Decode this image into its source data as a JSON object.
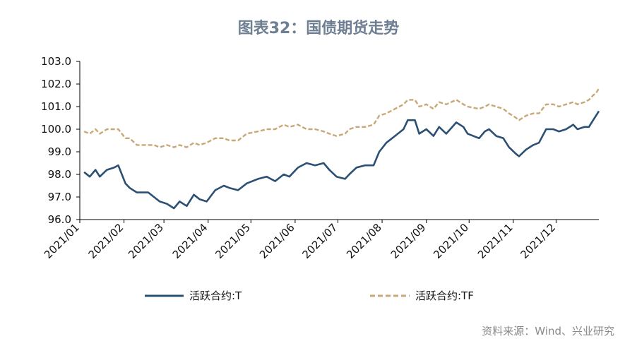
{
  "title": "图表32：国债期货走势",
  "source": "资料来源：Wind、兴业研究",
  "colors": {
    "T": "#2b5073",
    "TF": "#c8a878"
  },
  "chart_data": {
    "type": "line",
    "xlabel": "",
    "ylabel": "",
    "ylim": [
      96.0,
      103.0
    ],
    "y_ticks": [
      "96.0",
      "97.0",
      "98.0",
      "99.0",
      "100.0",
      "101.0",
      "102.0",
      "103.0"
    ],
    "x_ticks": [
      "2021/01",
      "2021/02",
      "2021/03",
      "2021/04",
      "2021/05",
      "2021/06",
      "2021/07",
      "2021/08",
      "2021/09",
      "2021/10",
      "2021/11",
      "2021/12"
    ],
    "legend_position": "bottom",
    "series": [
      {
        "name": "活跃合约:T",
        "style": "solid",
        "points": [
          [
            "2021/01/04",
            98.1
          ],
          [
            "2021/01/08",
            97.9
          ],
          [
            "2021/01/12",
            98.2
          ],
          [
            "2021/01/15",
            97.9
          ],
          [
            "2021/01/20",
            98.2
          ],
          [
            "2021/01/25",
            98.3
          ],
          [
            "2021/01/28",
            98.4
          ],
          [
            "2021/02/02",
            97.6
          ],
          [
            "2021/02/05",
            97.4
          ],
          [
            "2021/02/10",
            97.2
          ],
          [
            "2021/02/18",
            97.2
          ],
          [
            "2021/02/22",
            97.0
          ],
          [
            "2021/02/26",
            96.8
          ],
          [
            "2021/03/03",
            96.7
          ],
          [
            "2021/03/08",
            96.5
          ],
          [
            "2021/03/12",
            96.8
          ],
          [
            "2021/03/17",
            96.6
          ],
          [
            "2021/03/22",
            97.1
          ],
          [
            "2021/03/26",
            96.9
          ],
          [
            "2021/03/31",
            96.8
          ],
          [
            "2021/04/06",
            97.3
          ],
          [
            "2021/04/12",
            97.5
          ],
          [
            "2021/04/16",
            97.4
          ],
          [
            "2021/04/22",
            97.3
          ],
          [
            "2021/04/28",
            97.6
          ],
          [
            "2021/05/06",
            97.8
          ],
          [
            "2021/05/12",
            97.9
          ],
          [
            "2021/05/18",
            97.7
          ],
          [
            "2021/05/24",
            98.0
          ],
          [
            "2021/05/28",
            97.9
          ],
          [
            "2021/06/03",
            98.3
          ],
          [
            "2021/06/09",
            98.5
          ],
          [
            "2021/06/15",
            98.4
          ],
          [
            "2021/06/21",
            98.5
          ],
          [
            "2021/06/25",
            98.2
          ],
          [
            "2021/06/30",
            97.9
          ],
          [
            "2021/07/06",
            97.8
          ],
          [
            "2021/07/09",
            98.0
          ],
          [
            "2021/07/14",
            98.3
          ],
          [
            "2021/07/20",
            98.4
          ],
          [
            "2021/07/26",
            98.4
          ],
          [
            "2021/07/30",
            99.0
          ],
          [
            "2021/08/04",
            99.4
          ],
          [
            "2021/08/10",
            99.7
          ],
          [
            "2021/08/16",
            100.0
          ],
          [
            "2021/08/19",
            100.4
          ],
          [
            "2021/08/24",
            100.4
          ],
          [
            "2021/08/27",
            99.8
          ],
          [
            "2021/09/01",
            100.0
          ],
          [
            "2021/09/06",
            99.7
          ],
          [
            "2021/09/10",
            100.1
          ],
          [
            "2021/09/15",
            99.8
          ],
          [
            "2021/09/22",
            100.3
          ],
          [
            "2021/09/27",
            100.1
          ],
          [
            "2021/09/30",
            99.8
          ],
          [
            "2021/10/08",
            99.6
          ],
          [
            "2021/10/12",
            99.9
          ],
          [
            "2021/10/15",
            100.0
          ],
          [
            "2021/10/20",
            99.7
          ],
          [
            "2021/10/25",
            99.6
          ],
          [
            "2021/10/29",
            99.2
          ],
          [
            "2021/11/03",
            98.9
          ],
          [
            "2021/11/05",
            98.8
          ],
          [
            "2021/11/10",
            99.1
          ],
          [
            "2021/11/15",
            99.3
          ],
          [
            "2021/11/19",
            99.4
          ],
          [
            "2021/11/24",
            100.0
          ],
          [
            "2021/11/29",
            100.0
          ],
          [
            "2021/12/03",
            99.9
          ],
          [
            "2021/12/08",
            100.0
          ],
          [
            "2021/12/13",
            100.2
          ],
          [
            "2021/12/16",
            100.0
          ],
          [
            "2021/12/21",
            100.1
          ],
          [
            "2021/12/24",
            100.1
          ],
          [
            "2021/12/27",
            100.4
          ],
          [
            "2021/12/29",
            100.6
          ],
          [
            "2021/12/31",
            100.8
          ]
        ]
      },
      {
        "name": "活跃合约:TF",
        "style": "dashed",
        "points": [
          [
            "2021/01/04",
            99.9
          ],
          [
            "2021/01/08",
            99.8
          ],
          [
            "2021/01/12",
            100.0
          ],
          [
            "2021/01/15",
            99.8
          ],
          [
            "2021/01/20",
            100.0
          ],
          [
            "2021/01/25",
            100.0
          ],
          [
            "2021/01/28",
            100.0
          ],
          [
            "2021/02/02",
            99.6
          ],
          [
            "2021/02/05",
            99.6
          ],
          [
            "2021/02/10",
            99.3
          ],
          [
            "2021/02/18",
            99.3
          ],
          [
            "2021/02/22",
            99.3
          ],
          [
            "2021/02/26",
            99.2
          ],
          [
            "2021/03/03",
            99.3
          ],
          [
            "2021/03/08",
            99.2
          ],
          [
            "2021/03/12",
            99.3
          ],
          [
            "2021/03/17",
            99.2
          ],
          [
            "2021/03/22",
            99.4
          ],
          [
            "2021/03/26",
            99.3
          ],
          [
            "2021/03/31",
            99.4
          ],
          [
            "2021/04/06",
            99.6
          ],
          [
            "2021/04/12",
            99.6
          ],
          [
            "2021/04/16",
            99.5
          ],
          [
            "2021/04/22",
            99.5
          ],
          [
            "2021/04/28",
            99.8
          ],
          [
            "2021/05/06",
            99.9
          ],
          [
            "2021/05/12",
            100.0
          ],
          [
            "2021/05/18",
            100.0
          ],
          [
            "2021/05/24",
            100.2
          ],
          [
            "2021/05/28",
            100.1
          ],
          [
            "2021/06/03",
            100.2
          ],
          [
            "2021/06/09",
            100.0
          ],
          [
            "2021/06/15",
            100.0
          ],
          [
            "2021/06/21",
            99.9
          ],
          [
            "2021/06/25",
            99.8
          ],
          [
            "2021/06/30",
            99.7
          ],
          [
            "2021/07/06",
            99.8
          ],
          [
            "2021/07/09",
            100.0
          ],
          [
            "2021/07/14",
            100.1
          ],
          [
            "2021/07/20",
            100.1
          ],
          [
            "2021/07/26",
            100.2
          ],
          [
            "2021/07/30",
            100.6
          ],
          [
            "2021/08/04",
            100.7
          ],
          [
            "2021/08/10",
            100.9
          ],
          [
            "2021/08/16",
            101.1
          ],
          [
            "2021/08/19",
            101.3
          ],
          [
            "2021/08/24",
            101.3
          ],
          [
            "2021/08/27",
            101.0
          ],
          [
            "2021/09/01",
            101.1
          ],
          [
            "2021/09/06",
            100.9
          ],
          [
            "2021/09/10",
            101.2
          ],
          [
            "2021/09/15",
            101.1
          ],
          [
            "2021/09/22",
            101.3
          ],
          [
            "2021/09/27",
            101.1
          ],
          [
            "2021/09/30",
            101.0
          ],
          [
            "2021/10/08",
            100.9
          ],
          [
            "2021/10/12",
            101.0
          ],
          [
            "2021/10/15",
            101.1
          ],
          [
            "2021/10/20",
            101.0
          ],
          [
            "2021/10/25",
            100.9
          ],
          [
            "2021/10/29",
            100.7
          ],
          [
            "2021/11/03",
            100.5
          ],
          [
            "2021/11/05",
            100.4
          ],
          [
            "2021/11/10",
            100.6
          ],
          [
            "2021/11/15",
            100.7
          ],
          [
            "2021/11/19",
            100.7
          ],
          [
            "2021/11/24",
            101.1
          ],
          [
            "2021/11/29",
            101.1
          ],
          [
            "2021/12/03",
            101.0
          ],
          [
            "2021/12/08",
            101.1
          ],
          [
            "2021/12/13",
            101.2
          ],
          [
            "2021/12/16",
            101.1
          ],
          [
            "2021/12/21",
            101.2
          ],
          [
            "2021/12/24",
            101.3
          ],
          [
            "2021/12/27",
            101.5
          ],
          [
            "2021/12/29",
            101.6
          ],
          [
            "2021/12/31",
            101.8
          ]
        ]
      }
    ]
  }
}
